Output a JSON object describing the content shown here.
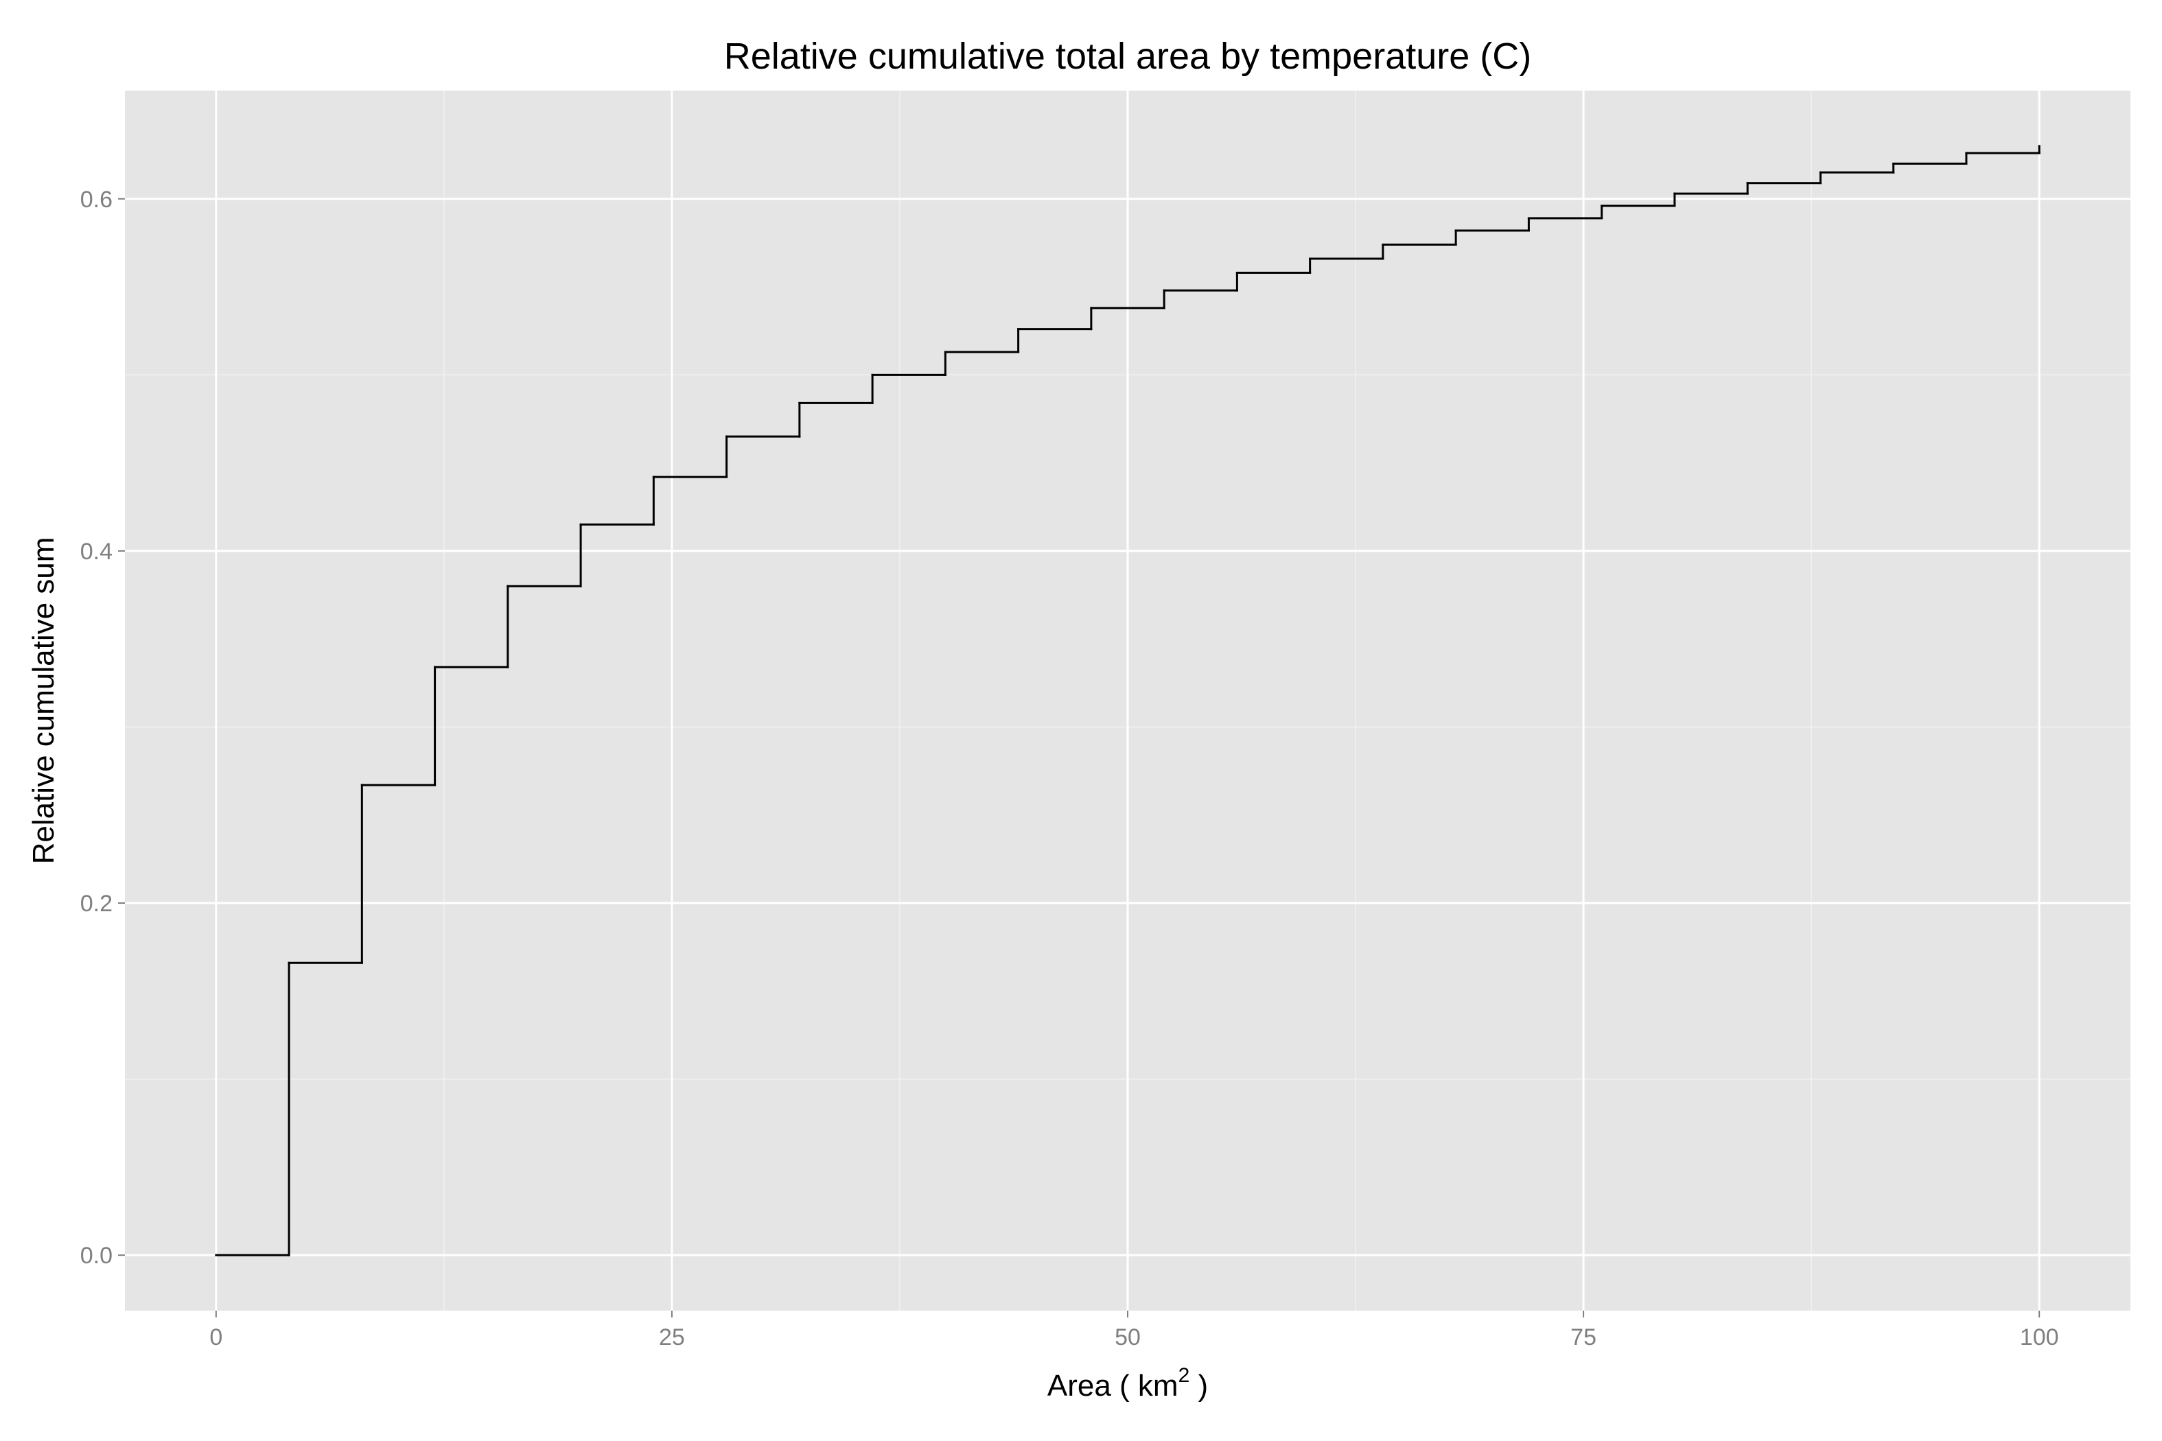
{
  "chart_data": {
    "type": "step",
    "title": "Relative cumulative total area by temperature (C)",
    "x_label": {
      "text": "Area ( km",
      "superscript": "2",
      "suffix": " )"
    },
    "y_label": "Relative cumulative sum",
    "x": [
      0,
      4,
      8,
      12,
      16,
      20,
      24,
      28,
      32,
      36,
      40,
      44,
      48,
      52,
      56,
      60,
      64,
      68,
      72,
      76,
      80,
      84,
      88,
      92,
      96,
      100
    ],
    "y": [
      0,
      0.166,
      0.267,
      0.334,
      0.38,
      0.415,
      0.442,
      0.465,
      0.484,
      0.5,
      0.513,
      0.526,
      0.538,
      0.548,
      0.558,
      0.566,
      0.574,
      0.582,
      0.589,
      0.596,
      0.603,
      0.609,
      0.615,
      0.62,
      0.626,
      0.63
    ],
    "color": "#000000",
    "xlim": [
      -5,
      105
    ],
    "xticks": [
      0,
      25,
      50,
      75,
      100
    ],
    "ylim": [
      -0.0315,
      0.6615
    ],
    "yticks": [
      {
        "value": 0,
        "label": "0.0"
      },
      {
        "value": 0.2,
        "label": "0.2"
      },
      {
        "value": 0.4,
        "label": "0.4"
      },
      {
        "value": 0.6,
        "label": "0.6"
      }
    ],
    "grid": true,
    "minor_grid": true
  }
}
